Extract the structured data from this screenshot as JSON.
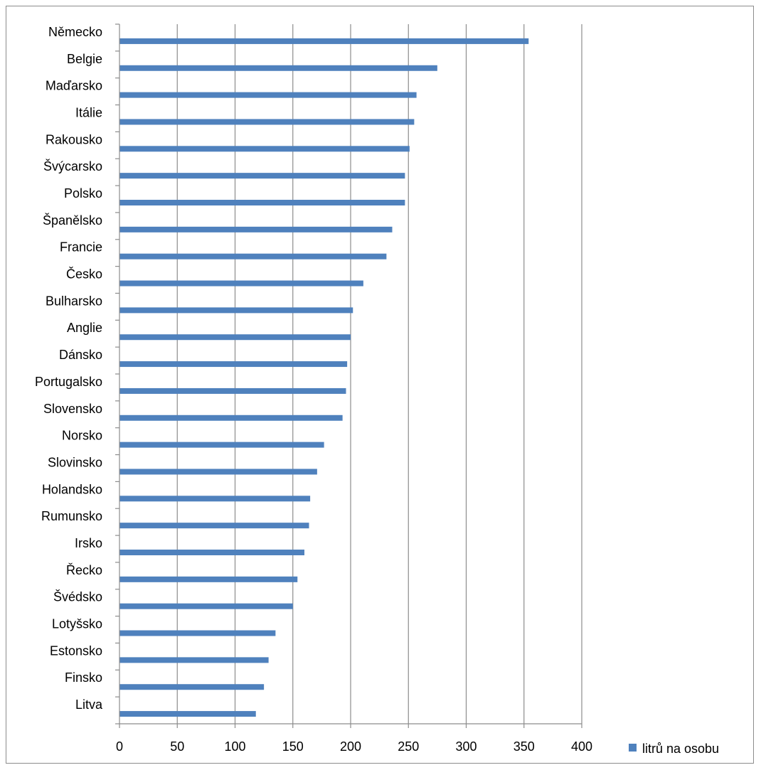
{
  "chart_data": {
    "type": "bar",
    "orientation": "horizontal",
    "categories": [
      "Německo",
      "Belgie",
      "Maďarsko",
      "Itálie",
      "Rakousko",
      "Švýcarsko",
      "Polsko",
      "Španělsko",
      "Francie",
      "Česko",
      "Bulharsko",
      "Anglie",
      "Dánsko",
      "Portugalsko",
      "Slovensko",
      "Norsko",
      "Slovinsko",
      "Holandsko",
      "Rumunsko",
      "Irsko",
      "Řecko",
      "Švédsko",
      "Lotyšsko",
      "Estonsko",
      "Finsko",
      "Litva"
    ],
    "series": [
      {
        "name": "litrů na osobu",
        "color": "#4f81bd",
        "values": [
          354,
          275,
          257,
          255,
          251,
          247,
          247,
          236,
          231,
          211,
          202,
          200,
          197,
          196,
          193,
          177,
          171,
          165,
          164,
          160,
          154,
          150,
          135,
          129,
          125,
          118
        ]
      }
    ],
    "xlim": [
      0,
      400
    ],
    "xticks": [
      0,
      50,
      100,
      150,
      200,
      250,
      300,
      350,
      400
    ],
    "xtick_labels": [
      "0",
      "50",
      "100",
      "150",
      "200",
      "250",
      "300",
      "350",
      "400"
    ],
    "grid": "vertical",
    "legend_position": "bottom-right"
  }
}
